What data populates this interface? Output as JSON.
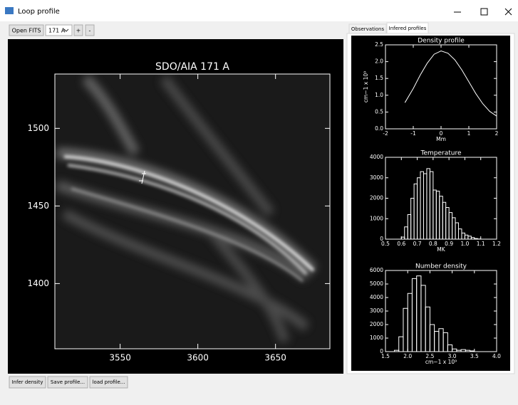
{
  "window": {
    "title": "Loop profile"
  },
  "toolbar": {
    "open": "Open FITS",
    "channel": "171 A",
    "plus": "+",
    "minus": "-"
  },
  "tabs": [
    "Observations",
    "Infered profiles"
  ],
  "buttons": [
    "Infer density",
    "Save profile...",
    "load profile..."
  ],
  "chart_data": [
    {
      "type": "image",
      "title": "SDO/AIA 171 A",
      "xlim": [
        3508,
        3685
      ],
      "xticks": [
        3550,
        3600,
        3650
      ],
      "ylim": [
        1358,
        1535
      ],
      "yticks": [
        1400,
        1450,
        1500
      ]
    },
    {
      "type": "line",
      "title": "Density profile",
      "xlabel": "Mm",
      "ylabel": "cm−1 x 10⁹",
      "color": "#ffffff",
      "x": [
        -1.3,
        -1,
        -0.75,
        -0.5,
        -0.25,
        0,
        0.25,
        0.5,
        0.75,
        1,
        1.25,
        1.5,
        1.75,
        2
      ],
      "values": [
        0.78,
        1.2,
        1.6,
        1.95,
        2.22,
        2.32,
        2.25,
        2.05,
        1.75,
        1.4,
        1.05,
        0.75,
        0.52,
        0.38
      ],
      "xlim": [
        -2,
        2
      ],
      "xticks": [
        -2,
        -1,
        0,
        1,
        2
      ],
      "ylim": [
        0,
        2.5
      ],
      "yticks": [
        {
          "value": 0,
          "label": "0.0"
        },
        0.5,
        {
          "value": 1,
          "label": "1.0"
        },
        1.5,
        {
          "value": 2,
          "label": "2.0"
        },
        2.5
      ]
    },
    {
      "type": "histogram",
      "title": "Temperature",
      "xlabel": "MK",
      "color": "#ffffff",
      "bins": [
        0.6,
        0.62,
        0.64,
        0.66,
        0.68,
        0.7,
        0.72,
        0.74,
        0.76,
        0.78,
        0.8,
        0.82,
        0.84,
        0.86,
        0.88,
        0.9,
        0.92,
        0.94,
        0.96,
        0.98,
        1.0,
        1.02,
        1.04,
        1.06,
        1.08,
        1.1
      ],
      "values": [
        100,
        600,
        1200,
        2000,
        2700,
        3000,
        3300,
        3200,
        3450,
        3300,
        2400,
        2350,
        2100,
        1800,
        1550,
        1300,
        1050,
        800,
        500,
        300,
        200,
        150,
        80,
        30,
        10
      ],
      "xlim": [
        0.5,
        1.2
      ],
      "xticks": [
        0.5,
        0.6,
        0.7,
        0.8,
        0.9,
        {
          "value": 1,
          "label": "1.0"
        },
        1.1,
        1.2
      ],
      "ylim": [
        0,
        4000
      ],
      "yticks": [
        0,
        1000,
        2000,
        3000,
        4000
      ]
    },
    {
      "type": "histogram",
      "title": "Number density",
      "xlabel": "cm−1 x 10⁹",
      "color": "#ffffff",
      "bins": [
        1.7,
        1.8,
        1.9,
        2.0,
        2.1,
        2.2,
        2.3,
        2.4,
        2.5,
        2.6,
        2.7,
        2.8,
        2.9,
        3.0,
        3.1,
        3.2,
        3.3,
        3.4,
        3.5
      ],
      "values": [
        100,
        1100,
        3200,
        4300,
        5400,
        5600,
        4900,
        3300,
        2000,
        1500,
        1700,
        1400,
        500,
        200,
        100,
        150,
        100,
        50
      ],
      "xlim": [
        1.5,
        4
      ],
      "xticks": [
        1.5,
        {
          "value": 2,
          "label": "2.0"
        },
        2.5,
        {
          "value": 3,
          "label": "3.0"
        },
        3.5,
        {
          "value": 4,
          "label": "4.0"
        }
      ],
      "ylim": [
        0,
        6000
      ],
      "yticks": [
        0,
        1000,
        2000,
        3000,
        4000,
        5000,
        6000
      ]
    }
  ]
}
